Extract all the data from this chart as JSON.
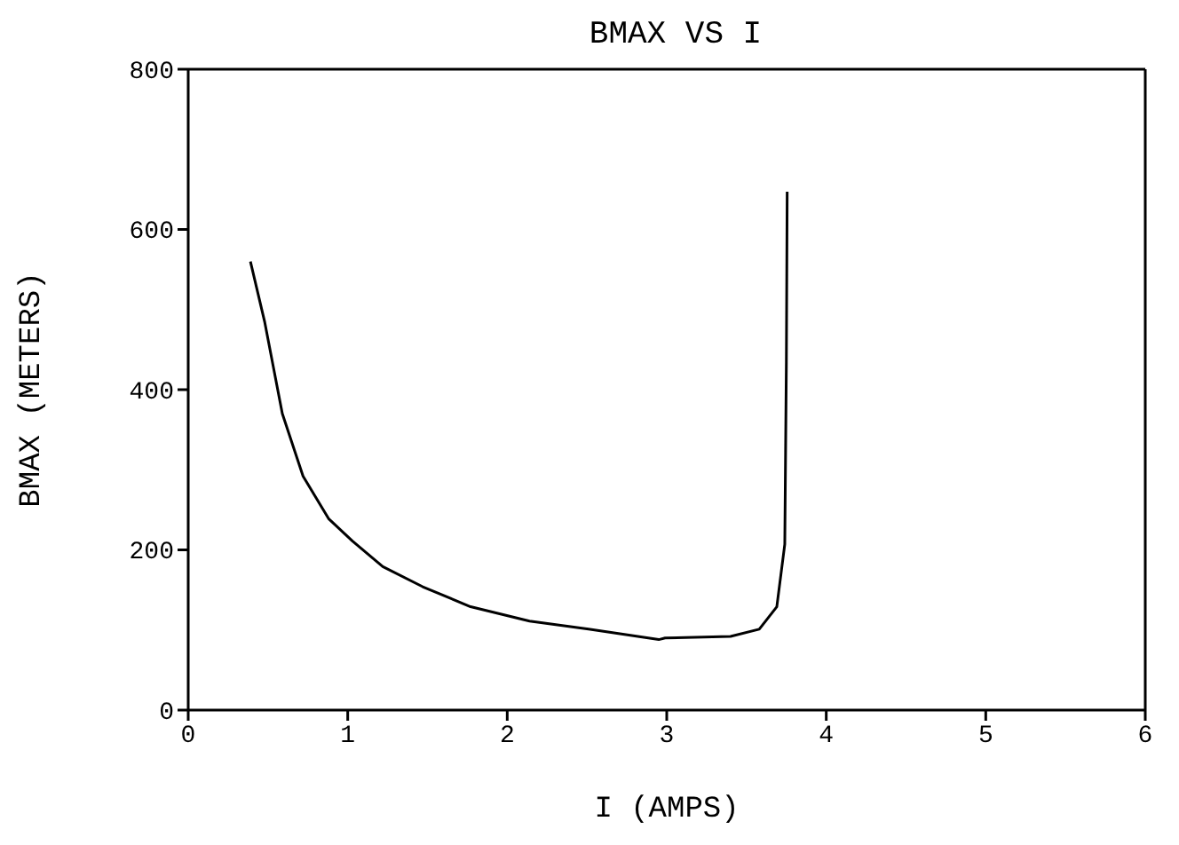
{
  "chart_data": {
    "type": "line",
    "title": "BMAX VS I",
    "xlabel": "I (AMPS)",
    "ylabel": "BMAX (METERS)",
    "xlim": [
      0,
      6
    ],
    "xticks": [
      0,
      1,
      2,
      3,
      4,
      5,
      6
    ],
    "ylim": [
      0,
      800
    ],
    "yticks": [
      0,
      200,
      400,
      600,
      800
    ],
    "legend": false,
    "marker": "none",
    "line_style": "solid",
    "series": [
      {
        "color": "#000000",
        "x": [
          0.39,
          0.48,
          0.59,
          0.72,
          0.88,
          1.03,
          1.22,
          1.47,
          1.77,
          2.14,
          2.51,
          2.95,
          2.99,
          3.4,
          3.58,
          3.69,
          3.74,
          3.75,
          3.755
        ],
        "values": [
          560,
          484,
          370,
          292,
          239,
          211,
          179,
          154,
          129,
          111,
          101,
          88,
          90,
          92,
          101,
          129,
          207,
          434,
          647
        ]
      }
    ]
  }
}
